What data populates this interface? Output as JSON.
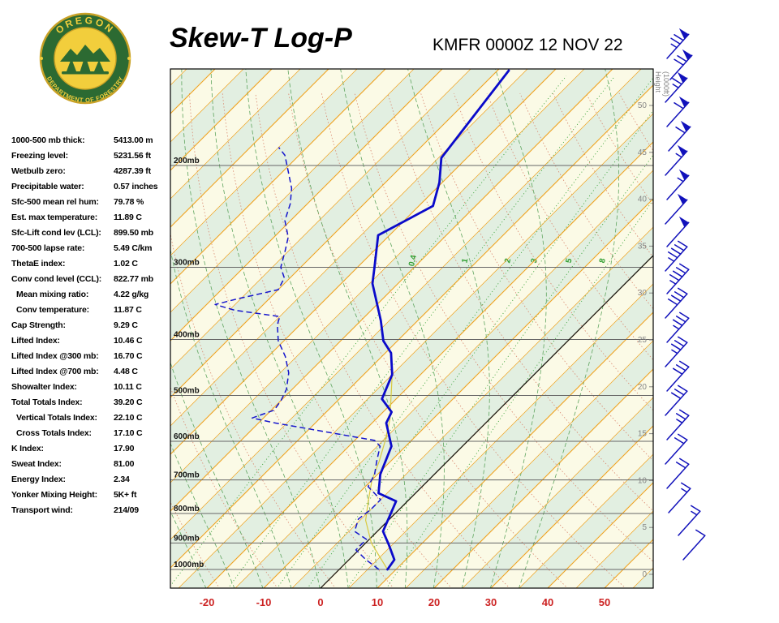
{
  "header": {
    "title": "Skew-T Log-P",
    "station": "KMFR 0000Z 12 NOV 22"
  },
  "logo": {
    "top_text": "OREGON",
    "bottom_text": "DEPARTMENT OF FORESTRY"
  },
  "indices": [
    {
      "label": "1000-500 mb thick:",
      "value": "5413.00 m"
    },
    {
      "label": "Freezing level:",
      "value": "5231.56 ft"
    },
    {
      "label": "Wetbulb zero:",
      "value": "4287.39 ft"
    },
    {
      "label": "Precipitable water:",
      "value": "0.57 inches"
    },
    {
      "label": "Sfc-500 mean rel hum:",
      "value": "79.78 %"
    },
    {
      "label": "Est. max temperature:",
      "value": "11.89 C"
    },
    {
      "label": "Sfc-Lift cond lev (LCL):",
      "value": "899.50 mb"
    },
    {
      "label": "700-500 lapse rate:",
      "value": "5.49 C/km"
    },
    {
      "label": "ThetaE index:",
      "value": "1.02 C"
    },
    {
      "label": "Conv cond level (CCL):",
      "value": "822.77 mb"
    },
    {
      "label": "Mean mixing ratio:",
      "value": "4.22 g/kg",
      "indent": true
    },
    {
      "label": "Conv temperature:",
      "value": "11.87 C",
      "indent": true
    },
    {
      "label": "Cap Strength:",
      "value": "9.29 C"
    },
    {
      "label": "Lifted Index:",
      "value": "10.46 C"
    },
    {
      "label": "Lifted Index @300 mb:",
      "value": "16.70 C"
    },
    {
      "label": "Lifted Index @700 mb:",
      "value": "4.48 C"
    },
    {
      "label": "Showalter Index:",
      "value": "10.11 C"
    },
    {
      "label": "Total Totals Index:",
      "value": "39.20 C"
    },
    {
      "label": "Vertical Totals Index:",
      "value": "22.10 C",
      "indent": true
    },
    {
      "label": "Cross Totals Index:",
      "value": "17.10 C",
      "indent": true
    },
    {
      "label": "K Index:",
      "value": "17.90"
    },
    {
      "label": "Sweat Index:",
      "value": "81.00"
    },
    {
      "label": "Energy Index:",
      "value": "2.34"
    },
    {
      "label": "Yonker Mixing Height:",
      "value": "5K+ ft"
    },
    {
      "label": "Transport wind:",
      "value": "214/09"
    }
  ],
  "chart_data": {
    "type": "line",
    "title": "Skew-T Log-P",
    "pressure_levels_mb": [
      200,
      300,
      400,
      500,
      600,
      700,
      800,
      900,
      1000
    ],
    "pressure_labels": [
      "200mb",
      "300mb",
      "400mb",
      "500mb",
      "600mb",
      "700mb",
      "800mb",
      "900mb",
      "1000mb"
    ],
    "temp_ticks_c": [
      -20,
      -10,
      0,
      10,
      20,
      30,
      40,
      50
    ],
    "height_ticks_kft": [
      50,
      45,
      40,
      35,
      30,
      25,
      20,
      15,
      10,
      5,
      0
    ],
    "height_axis_label_lines": [
      "Height",
      "(1000ft)"
    ],
    "mixing_ratio_lines_gkg": [
      0.4,
      1,
      2,
      3,
      5,
      8
    ],
    "series": [
      {
        "name": "temperature",
        "color": "#0A0ACA",
        "style": "solid",
        "points": [
          [
            1000,
            8.5
          ],
          [
            962,
            8.0
          ],
          [
            908,
            4.5
          ],
          [
            859,
            1.0
          ],
          [
            793,
            -1.0
          ],
          [
            762,
            -2.0
          ],
          [
            738,
            -6.5
          ],
          [
            685,
            -9.5
          ],
          [
            612,
            -12.5
          ],
          [
            558,
            -17.5
          ],
          [
            534,
            -18.5
          ],
          [
            507,
            -22.5
          ],
          [
            460,
            -25.0
          ],
          [
            422,
            -29.0
          ],
          [
            402,
            -32.5
          ],
          [
            371,
            -36.5
          ],
          [
            320,
            -44.5
          ],
          [
            300,
            -47.0
          ],
          [
            264,
            -52.0
          ],
          [
            235,
            -47.5
          ],
          [
            214,
            -50.5
          ],
          [
            194,
            -54.5
          ],
          [
            137,
            -58.0
          ]
        ]
      },
      {
        "name": "dewpoint",
        "color": "#1515CC",
        "style": "dashed",
        "points": [
          [
            1000,
            7.0
          ],
          [
            962,
            3.0
          ],
          [
            925,
            -0.5
          ],
          [
            887,
            -0.5
          ],
          [
            859,
            -4.0
          ],
          [
            818,
            -5.5
          ],
          [
            787,
            -5.0
          ],
          [
            757,
            -5.0
          ],
          [
            719,
            -9.5
          ],
          [
            685,
            -10.5
          ],
          [
            649,
            -12.5
          ],
          [
            612,
            -14.5
          ],
          [
            598,
            -16.5
          ],
          [
            558,
            -37.0
          ],
          [
            547,
            -42.0
          ],
          [
            530,
            -39.5
          ],
          [
            510,
            -40.0
          ],
          [
            488,
            -41.0
          ],
          [
            457,
            -43.5
          ],
          [
            428,
            -47.0
          ],
          [
            402,
            -51.0
          ],
          [
            377,
            -54.0
          ],
          [
            365,
            -55.0
          ],
          [
            356,
            -64.0
          ],
          [
            348,
            -68.5
          ],
          [
            340,
            -65.5
          ],
          [
            328,
            -60.0
          ],
          [
            313,
            -61.0
          ],
          [
            300,
            -63.5
          ],
          [
            282,
            -65.5
          ],
          [
            266,
            -67.5
          ],
          [
            249,
            -71.0
          ],
          [
            233,
            -73.0
          ],
          [
            219,
            -75.5
          ],
          [
            205,
            -79.0
          ],
          [
            192,
            -82.5
          ],
          [
            186,
            -85.0
          ]
        ]
      },
      {
        "name": "parcel",
        "color": "#D9C93F",
        "style": "solid",
        "points": [
          [
            1000,
            8.5
          ],
          [
            900,
            1.0
          ],
          [
            822,
            -4.0
          ],
          [
            760,
            -7.0
          ],
          [
            700,
            -10.0
          ],
          [
            650,
            -12.0
          ],
          [
            600,
            -14.5
          ],
          [
            550,
            -17.5
          ],
          [
            500,
            -21.5
          ],
          [
            460,
            -25.0
          ]
        ]
      }
    ],
    "wind_barbs": [
      {
        "x": 822,
        "y": 72,
        "speed_kt": 75
      },
      {
        "x": 826,
        "y": 98,
        "speed_kt": 70
      },
      {
        "x": 820,
        "y": 126,
        "speed_kt": 65
      },
      {
        "x": 822,
        "y": 156,
        "speed_kt": 60
      },
      {
        "x": 824,
        "y": 186,
        "speed_kt": 60
      },
      {
        "x": 820,
        "y": 216,
        "speed_kt": 55
      },
      {
        "x": 822,
        "y": 246,
        "speed_kt": 55
      },
      {
        "x": 820,
        "y": 276,
        "speed_kt": 50
      },
      {
        "x": 822,
        "y": 304,
        "speed_kt": 50
      },
      {
        "x": 820,
        "y": 334,
        "speed_kt": 45
      },
      {
        "x": 822,
        "y": 362,
        "speed_kt": 45
      },
      {
        "x": 820,
        "y": 392,
        "speed_kt": 40
      },
      {
        "x": 822,
        "y": 422,
        "speed_kt": 35
      },
      {
        "x": 820,
        "y": 452,
        "speed_kt": 35
      },
      {
        "x": 822,
        "y": 482,
        "speed_kt": 30
      },
      {
        "x": 820,
        "y": 512,
        "speed_kt": 30
      },
      {
        "x": 822,
        "y": 542,
        "speed_kt": 25
      },
      {
        "x": 820,
        "y": 572,
        "speed_kt": 20
      },
      {
        "x": 822,
        "y": 602,
        "speed_kt": 20
      },
      {
        "x": 824,
        "y": 632,
        "speed_kt": 15
      },
      {
        "x": 836,
        "y": 660,
        "speed_kt": 15
      },
      {
        "x": 842,
        "y": 690,
        "speed_kt": 10
      }
    ],
    "colors": {
      "band_cream": "#FBFAE6",
      "band_green": "#E2EFE1",
      "isotherm": "#EFA21F",
      "dry_adiabat": "#D98870",
      "moist_adiabat": "#5FA55F",
      "mixing_ratio": "#2F9E2F",
      "pressure_line": "#666666",
      "height_labels": "#858585",
      "temp_axis_labels": "#CC2222",
      "zero_isotherm": "#111111",
      "barbs": "#1111BB"
    }
  }
}
